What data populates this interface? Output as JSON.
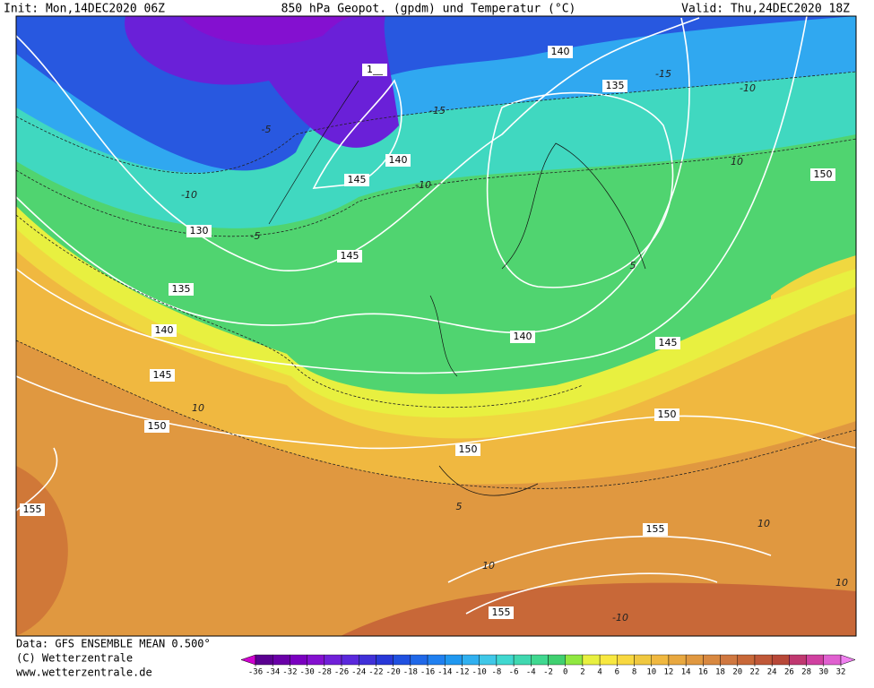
{
  "header": {
    "init": "Init: Mon,14DEC2020 06Z",
    "title": "850 hPa Geopot. (gpdm) und Temperatur (°C)",
    "valid": "Valid: Thu,24DEC2020 18Z"
  },
  "footer": {
    "source": "Data: GFS ENSEMBLE MEAN 0.500°",
    "copyright": "(C) Wetterzentrale",
    "website": "www.wetterzentrale.de"
  },
  "colorbar": {
    "ticks": [
      -36,
      -34,
      -32,
      -30,
      -28,
      -26,
      -24,
      -22,
      -20,
      -18,
      -16,
      -14,
      -12,
      -10,
      -8,
      -6,
      -4,
      -2,
      0,
      2,
      4,
      6,
      8,
      10,
      12,
      14,
      16,
      18,
      20,
      22,
      24,
      26,
      28,
      30,
      32
    ],
    "colors": [
      "#5a0090",
      "#6a00a8",
      "#7a00c0",
      "#8410d0",
      "#7020d8",
      "#5a28dc",
      "#4030d8",
      "#2838d8",
      "#2050e0",
      "#2068e8",
      "#2080f0",
      "#2098f0",
      "#30b0f0",
      "#40c8e8",
      "#40d8d0",
      "#40d8b0",
      "#40d890",
      "#40d070",
      "#90e840",
      "#e8f040",
      "#f8e840",
      "#f8d840",
      "#f0c840",
      "#f0b840",
      "#e8a840",
      "#e09840",
      "#d88840",
      "#d07840",
      "#c86838",
      "#c05838",
      "#b84838",
      "#c03870",
      "#d040a0",
      "#e060d0"
    ],
    "low_color": "#d000d0",
    "high_color": "#f080f0"
  },
  "map": {
    "height_labels": [
      "140",
      "135",
      "1__",
      "140",
      "145",
      "130",
      "135",
      "140",
      "145",
      "145",
      "140",
      "145",
      "150",
      "150",
      "150",
      "155",
      "155",
      "155",
      "150"
    ],
    "temperature_labels": [
      "-15",
      "-15",
      "-10",
      "-10",
      "-10",
      "-5",
      "-5",
      "10",
      "10",
      "5",
      "5",
      "10",
      "10",
      "-10",
      "10"
    ]
  }
}
